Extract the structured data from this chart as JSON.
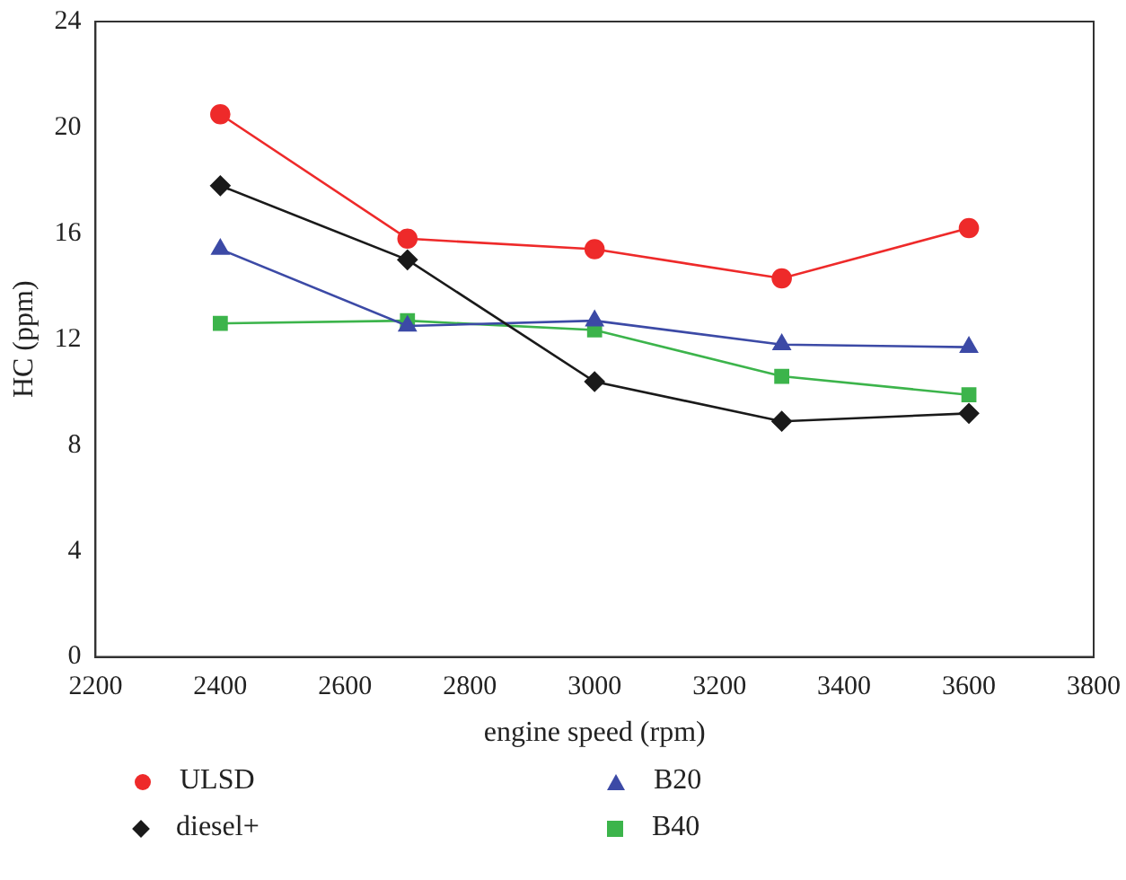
{
  "chart_data": {
    "type": "line",
    "xlabel": "engine speed (rpm)",
    "ylabel": "HC (ppm)",
    "x": [
      2400,
      2700,
      3000,
      3300,
      3600
    ],
    "xlim": [
      2200,
      3800
    ],
    "xticks": [
      2200,
      2400,
      2600,
      2800,
      3000,
      3200,
      3400,
      3600,
      3800
    ],
    "ylim": [
      0,
      24
    ],
    "yticks": [
      0,
      4,
      8,
      12,
      16,
      20,
      24
    ],
    "grid": false,
    "legend": "bottom",
    "series": [
      {
        "name": "ULSD",
        "color": "#ee2a2a",
        "marker": "circle",
        "values": [
          20.5,
          15.8,
          15.4,
          14.3,
          16.2
        ]
      },
      {
        "name": "diesel+",
        "color": "#1a1a1a",
        "marker": "diamond",
        "values": [
          17.8,
          15.0,
          10.4,
          8.9,
          9.2
        ]
      },
      {
        "name": "B20",
        "color": "#3c4aa6",
        "marker": "triangle",
        "values": [
          15.4,
          12.5,
          12.7,
          11.8,
          11.7
        ]
      },
      {
        "name": "B40",
        "color": "#3cb44b",
        "marker": "square",
        "values": [
          12.6,
          12.7,
          12.35,
          10.6,
          9.9
        ]
      }
    ]
  }
}
